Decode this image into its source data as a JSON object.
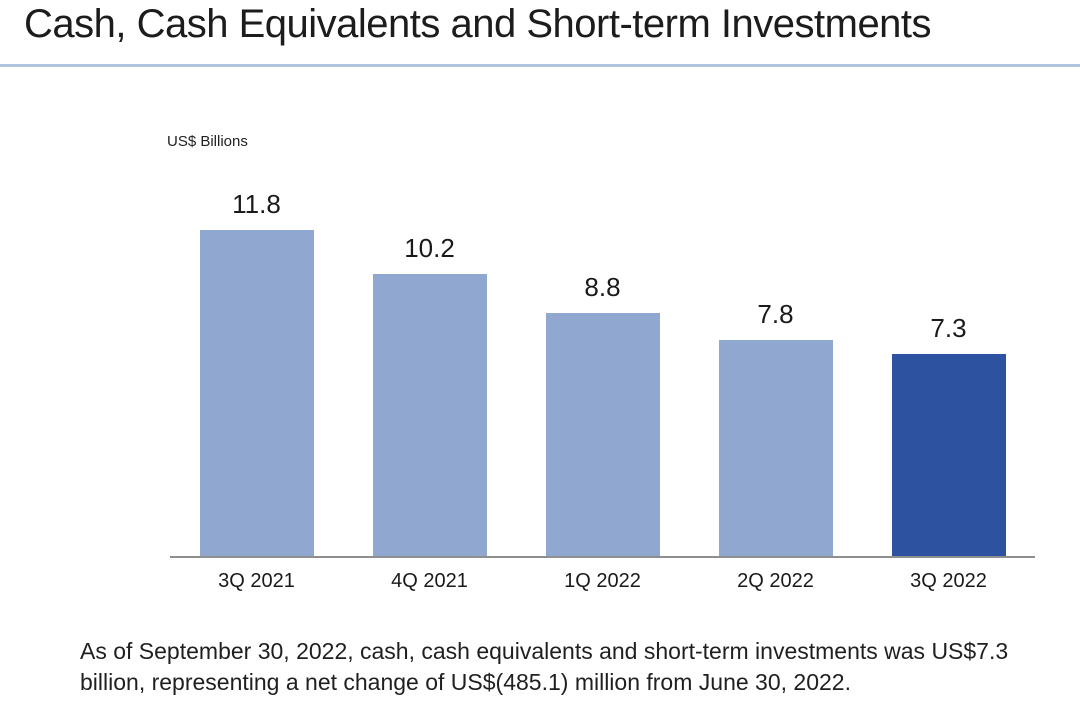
{
  "page": {
    "title": "Cash, Cash Equivalents and Short-term Investments",
    "footnote": "As of September 30, 2022, cash, cash equivalents and short-term investments was US$7.3 billion, representing a net change of US$(485.1) million from June 30, 2022."
  },
  "colors": {
    "bar": "#90a8d0",
    "bar_highlight": "#2d52a0",
    "title_divider": "#b0c4de",
    "axis_line": "#8f8f8f",
    "text": "#1f1f1f"
  },
  "chart_data": {
    "type": "bar",
    "title": "Cash, Cash Equivalents and Short-term Investments",
    "ylabel": "US$ Billions",
    "xlabel": "",
    "categories": [
      "3Q 2021",
      "4Q 2021",
      "1Q 2022",
      "2Q 2022",
      "3Q 2022"
    ],
    "values": [
      11.8,
      10.2,
      8.8,
      7.8,
      7.3
    ],
    "data_labels": [
      "11.8",
      "10.2",
      "8.8",
      "7.8",
      "7.3"
    ],
    "ylim": [
      0,
      12
    ],
    "grid": false,
    "legend": "none",
    "y_axis_ticks": "none",
    "data_label_position": "above bars",
    "highlight_index": 4,
    "bar_color": "#90a8d0",
    "highlight_color": "#2d52a0"
  }
}
